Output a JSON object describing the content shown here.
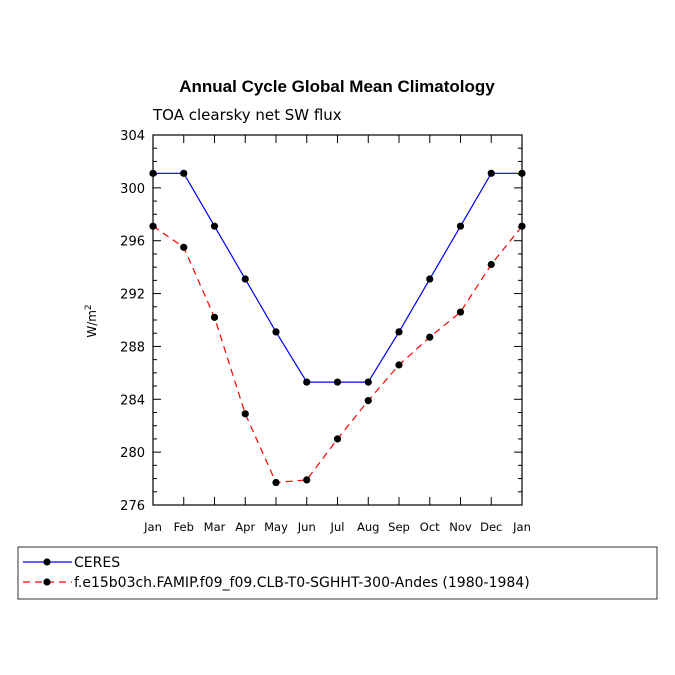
{
  "chart_data": {
    "type": "line",
    "title": "Annual Cycle Global Mean Climatology",
    "subtitle": "TOA clearsky net SW flux",
    "ylabel": "W/m",
    "ylabel_sup": "2",
    "xlabel": "",
    "categories": [
      "Jan",
      "Feb",
      "Mar",
      "Apr",
      "May",
      "Jun",
      "Jul",
      "Aug",
      "Sep",
      "Oct",
      "Nov",
      "Dec",
      "Jan"
    ],
    "ylim": [
      276,
      304
    ],
    "yticks": [
      276,
      280,
      284,
      288,
      292,
      296,
      300,
      304
    ],
    "series": [
      {
        "name": "CERES",
        "color": "#0000ff",
        "dash": "solid",
        "values": [
          301.1,
          301.1,
          297.1,
          293.1,
          289.1,
          285.3,
          285.3,
          285.3,
          289.1,
          293.1,
          297.1,
          301.1,
          301.1
        ]
      },
      {
        "name": "f.e15b03ch.FAMIP.f09_f09.CLB-T0-SGHHT-300-Andes (1980-1984)",
        "color": "#ff0000",
        "dash": "dashed",
        "values": [
          297.1,
          295.5,
          290.2,
          282.9,
          277.7,
          277.9,
          281.0,
          283.9,
          286.6,
          288.7,
          290.6,
          294.2,
          297.1
        ]
      }
    ]
  }
}
